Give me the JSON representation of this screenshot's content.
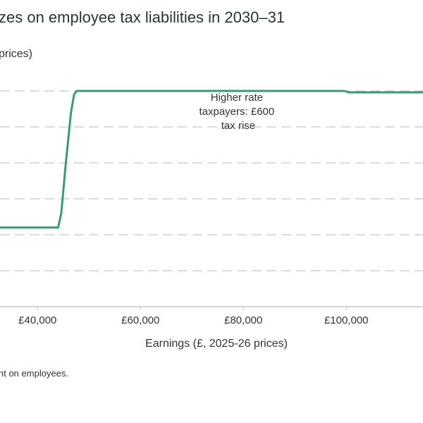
{
  "title": "zes on employee tax liabilities in 2030–31",
  "subtitle": "prices)",
  "note": "nt on employees.",
  "colors": {
    "line": "#3a9a76",
    "grid": "#c8c8c8",
    "axis": "#c8c8c8"
  },
  "chart_data": {
    "type": "line",
    "xlabel": "Earnings (£, 2025-26 prices)",
    "ylabel": "",
    "xlim": [
      32700,
      114900
    ],
    "ylim": [
      0,
      600
    ],
    "grid": true,
    "x_ticks": [
      {
        "value": 40000,
        "label": "£40,000"
      },
      {
        "value": 60000,
        "label": "£60,000"
      },
      {
        "value": 80000,
        "label": "£80,000"
      },
      {
        "value": 100000,
        "label": "£100,000"
      }
    ],
    "y_gridlines": [
      100,
      200,
      300,
      400,
      500,
      600
    ],
    "series": [
      {
        "x": [
          32700,
          44000,
          44600,
          45500,
          46500,
          47100,
          47600,
          99600,
          100500,
          114900
        ],
        "y": [
          220,
          220,
          260,
          400,
          540,
          590,
          600,
          600,
          596,
          596
        ]
      }
    ],
    "annotations": [
      {
        "lines": [
          "Higher rate",
          "taxpayers: £600",
          "tax rise"
        ],
        "x": 79000,
        "y": 565
      }
    ]
  }
}
